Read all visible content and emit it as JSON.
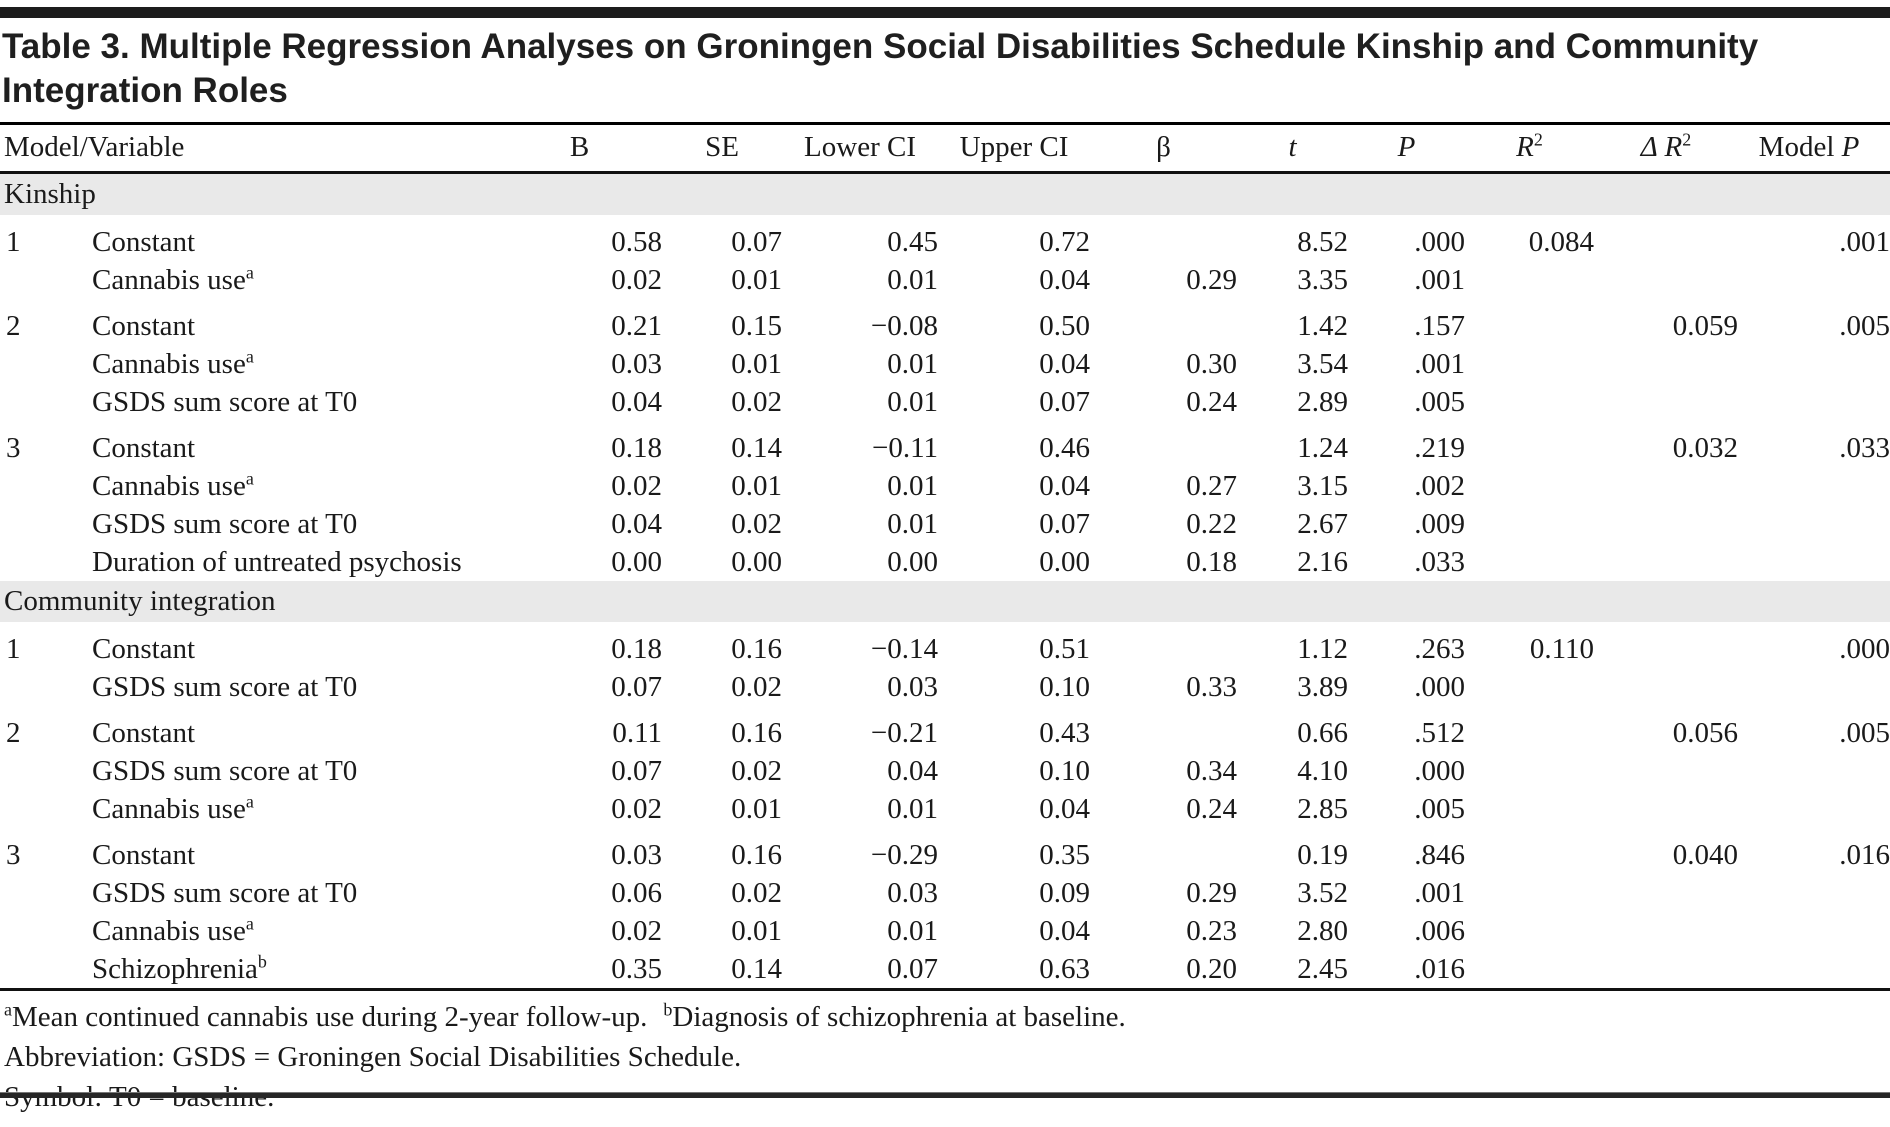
{
  "title": "Table 3. Multiple Regression Analyses on Groningen Social Disabilities Schedule Kinship and Community Integration Roles",
  "columns": {
    "model_variable": "Model/Variable",
    "b": "B",
    "se": "SE",
    "lower_ci": "Lower CI",
    "upper_ci": "Upper CI",
    "beta": "β",
    "t": "t",
    "p": "P",
    "r2_base": "R",
    "r2_sup": "2",
    "delta_r2_base": "Δ R",
    "delta_r2_sup": "2",
    "model_p_prefix": "Model ",
    "model_p_italic": "P"
  },
  "sections": [
    {
      "label": "Kinship",
      "rows": [
        {
          "model": "1",
          "variable": "Constant",
          "sup": "",
          "b": "0.58",
          "se": "0.07",
          "lower": "0.45",
          "upper": "0.72",
          "beta": "",
          "t": "8.52",
          "p": ".000",
          "r2": "0.084",
          "dr2": "",
          "modelp": ".001"
        },
        {
          "model": "",
          "variable": "Cannabis use",
          "sup": "a",
          "b": "0.02",
          "se": "0.01",
          "lower": "0.01",
          "upper": "0.04",
          "beta": "0.29",
          "t": "3.35",
          "p": ".001",
          "r2": "",
          "dr2": "",
          "modelp": ""
        },
        {
          "model": "2",
          "variable": "Constant",
          "sup": "",
          "b": "0.21",
          "se": "0.15",
          "lower": "−0.08",
          "upper": "0.50",
          "beta": "",
          "t": "1.42",
          "p": ".157",
          "r2": "",
          "dr2": "0.059",
          "modelp": ".005"
        },
        {
          "model": "",
          "variable": "Cannabis use",
          "sup": "a",
          "b": "0.03",
          "se": "0.01",
          "lower": "0.01",
          "upper": "0.04",
          "beta": "0.30",
          "t": "3.54",
          "p": ".001",
          "r2": "",
          "dr2": "",
          "modelp": ""
        },
        {
          "model": "",
          "variable": "GSDS sum score at T0",
          "sup": "",
          "b": "0.04",
          "se": "0.02",
          "lower": "0.01",
          "upper": "0.07",
          "beta": "0.24",
          "t": "2.89",
          "p": ".005",
          "r2": "",
          "dr2": "",
          "modelp": ""
        },
        {
          "model": "3",
          "variable": "Constant",
          "sup": "",
          "b": "0.18",
          "se": "0.14",
          "lower": "−0.11",
          "upper": "0.46",
          "beta": "",
          "t": "1.24",
          "p": ".219",
          "r2": "",
          "dr2": "0.032",
          "modelp": ".033"
        },
        {
          "model": "",
          "variable": "Cannabis use",
          "sup": "a",
          "b": "0.02",
          "se": "0.01",
          "lower": "0.01",
          "upper": "0.04",
          "beta": "0.27",
          "t": "3.15",
          "p": ".002",
          "r2": "",
          "dr2": "",
          "modelp": ""
        },
        {
          "model": "",
          "variable": "GSDS sum score at T0",
          "sup": "",
          "b": "0.04",
          "se": "0.02",
          "lower": "0.01",
          "upper": "0.07",
          "beta": "0.22",
          "t": "2.67",
          "p": ".009",
          "r2": "",
          "dr2": "",
          "modelp": ""
        },
        {
          "model": "",
          "variable": "Duration of untreated psychosis",
          "sup": "",
          "b": "0.00",
          "se": "0.00",
          "lower": "0.00",
          "upper": "0.00",
          "beta": "0.18",
          "t": "2.16",
          "p": ".033",
          "r2": "",
          "dr2": "",
          "modelp": ""
        }
      ]
    },
    {
      "label": "Community integration",
      "rows": [
        {
          "model": "1",
          "variable": "Constant",
          "sup": "",
          "b": "0.18",
          "se": "0.16",
          "lower": "−0.14",
          "upper": "0.51",
          "beta": "",
          "t": "1.12",
          "p": ".263",
          "r2": "0.110",
          "dr2": "",
          "modelp": ".000"
        },
        {
          "model": "",
          "variable": "GSDS sum score at T0",
          "sup": "",
          "b": "0.07",
          "se": "0.02",
          "lower": "0.03",
          "upper": "0.10",
          "beta": "0.33",
          "t": "3.89",
          "p": ".000",
          "r2": "",
          "dr2": "",
          "modelp": ""
        },
        {
          "model": "2",
          "variable": "Constant",
          "sup": "",
          "b": "0.11",
          "se": "0.16",
          "lower": "−0.21",
          "upper": "0.43",
          "beta": "",
          "t": "0.66",
          "p": ".512",
          "r2": "",
          "dr2": "0.056",
          "modelp": ".005"
        },
        {
          "model": "",
          "variable": "GSDS sum score at T0",
          "sup": "",
          "b": "0.07",
          "se": "0.02",
          "lower": "0.04",
          "upper": "0.10",
          "beta": "0.34",
          "t": "4.10",
          "p": ".000",
          "r2": "",
          "dr2": "",
          "modelp": ""
        },
        {
          "model": "",
          "variable": "Cannabis use",
          "sup": "a",
          "b": "0.02",
          "se": "0.01",
          "lower": "0.01",
          "upper": "0.04",
          "beta": "0.24",
          "t": "2.85",
          "p": ".005",
          "r2": "",
          "dr2": "",
          "modelp": ""
        },
        {
          "model": "3",
          "variable": "Constant",
          "sup": "",
          "b": "0.03",
          "se": "0.16",
          "lower": "−0.29",
          "upper": "0.35",
          "beta": "",
          "t": "0.19",
          "p": ".846",
          "r2": "",
          "dr2": "0.040",
          "modelp": ".016"
        },
        {
          "model": "",
          "variable": "GSDS sum score at T0",
          "sup": "",
          "b": "0.06",
          "se": "0.02",
          "lower": "0.03",
          "upper": "0.09",
          "beta": "0.29",
          "t": "3.52",
          "p": ".001",
          "r2": "",
          "dr2": "",
          "modelp": ""
        },
        {
          "model": "",
          "variable": "Cannabis use",
          "sup": "a",
          "b": "0.02",
          "se": "0.01",
          "lower": "0.01",
          "upper": "0.04",
          "beta": "0.23",
          "t": "2.80",
          "p": ".006",
          "r2": "",
          "dr2": "",
          "modelp": ""
        },
        {
          "model": "",
          "variable": "Schizophrenia",
          "sup": "b",
          "b": "0.35",
          "se": "0.14",
          "lower": "0.07",
          "upper": "0.63",
          "beta": "0.20",
          "t": "2.45",
          "p": ".016",
          "r2": "",
          "dr2": "",
          "modelp": ""
        }
      ]
    }
  ],
  "footnotes": {
    "a_marker": "a",
    "a_text": "Mean continued cannabis use during 2-year follow-up.",
    "b_marker": "b",
    "b_text": "Diagnosis of schizophrenia at baseline.",
    "abbreviation": "Abbreviation: GSDS = Groningen Social Disabilities Schedule.",
    "symbol": "Symbol: T0 = baseline."
  },
  "colors": {
    "section_band": "#e9e9e9",
    "rule": "#111111",
    "top_bar": "#1c1c1c"
  }
}
